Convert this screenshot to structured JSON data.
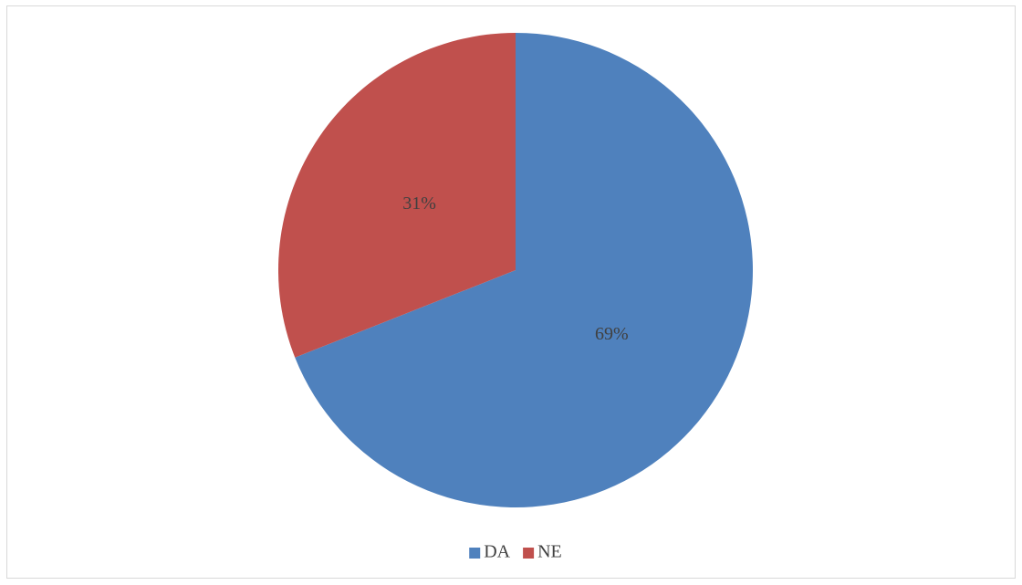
{
  "chart_data": {
    "type": "pie",
    "categories": [
      "DA",
      "NE"
    ],
    "values": [
      69,
      31
    ],
    "value_labels": [
      "69%",
      "31%"
    ],
    "colors": [
      "#4f81bd",
      "#c0504d"
    ],
    "legend": "bottom"
  }
}
